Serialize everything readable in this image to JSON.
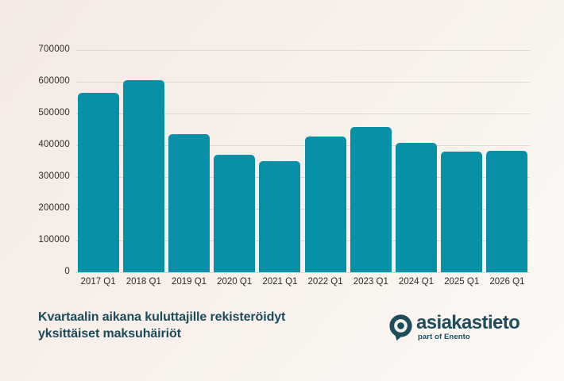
{
  "chart_data": {
    "type": "bar",
    "categories": [
      "2017 Q1",
      "2018 Q1",
      "2019 Q1",
      "2020 Q1",
      "2021 Q1",
      "2022 Q1",
      "2023 Q1",
      "2024 Q1",
      "2025 Q1",
      "2026 Q1"
    ],
    "values": [
      565000,
      605000,
      436000,
      370000,
      351000,
      428000,
      458000,
      408000,
      381000,
      382000
    ],
    "title": "",
    "xlabel": "",
    "ylabel": "",
    "ylim": [
      0,
      700000
    ],
    "yticks": [
      0,
      100000,
      200000,
      300000,
      400000,
      500000,
      600000,
      700000
    ],
    "grid": true,
    "legend": "none",
    "bar_color": "#0890a8"
  },
  "caption": {
    "line1": "Kvartaalin aikana kuluttajille rekisteröidyt",
    "line2": "yksittäiset maksuhäiriöt"
  },
  "logo": {
    "name": "asiakastieto",
    "tagline": "part of Enento",
    "color": "#1d4d5c"
  },
  "colors": {
    "background_start": "#f4e9e4",
    "background_end": "#fcf9f5",
    "gridline": "#dcd6d1",
    "tick_text": "#2f2c29",
    "caption_text": "#1b4b5a"
  }
}
